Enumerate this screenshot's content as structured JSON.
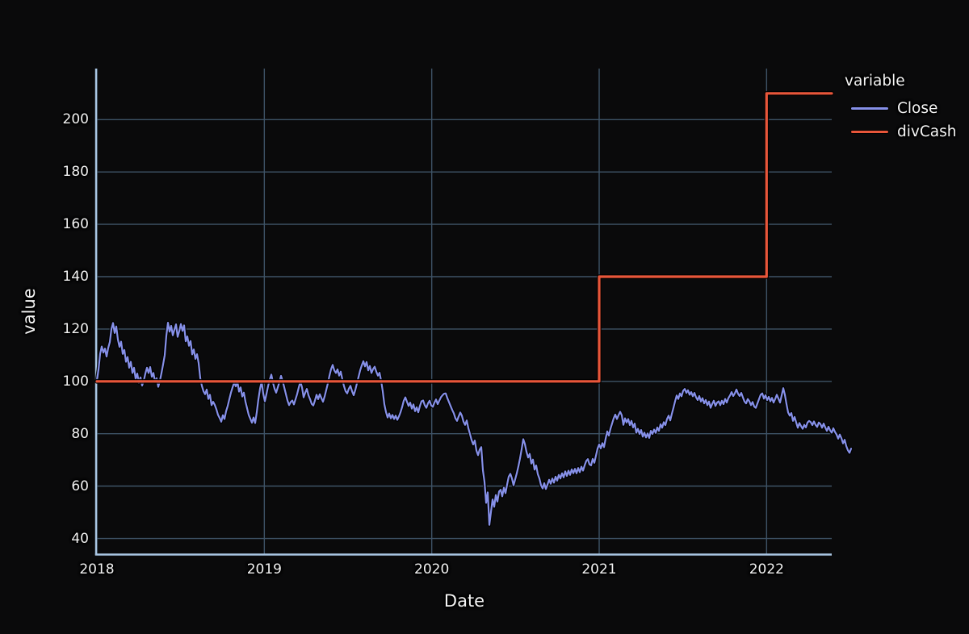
{
  "figure": {
    "kind": "dark-theme line chart"
  },
  "chart_data": {
    "type": "line",
    "title": "",
    "xlabel": "Date",
    "ylabel": "value",
    "legend": {
      "title": "variable",
      "position": "outside-right-top",
      "entries": [
        {
          "label": "Close",
          "color": "#8690e8"
        },
        {
          "label": "divCash",
          "color": "#e8563a"
        }
      ]
    },
    "x_domain": [
      2018.0,
      2022.389
    ],
    "y_domain": [
      34.0,
      219.5
    ],
    "xticks": [
      2018,
      2019,
      2020,
      2021,
      2022
    ],
    "yticks": [
      40,
      60,
      80,
      100,
      120,
      140,
      160,
      180,
      200
    ],
    "grid": true,
    "colors": {
      "background": "#0a0a0b",
      "grid": "#3e5366",
      "spine": "#a9c6e3",
      "text": "#f2f2f2"
    },
    "series": [
      {
        "name": "Close",
        "color": "#8690e8",
        "width": 2.2,
        "x_start": 2018.0,
        "x_step": 0.009646,
        "values": [
          100.3,
          104.5,
          110.5,
          113.3,
          111.0,
          112.5,
          109.5,
          112.8,
          115.0,
          120.0,
          122.3,
          118.5,
          121.0,
          116.0,
          113.2,
          115.2,
          110.5,
          112.0,
          107.5,
          109.3,
          105.2,
          107.5,
          103.2,
          105.2,
          100.9,
          103.0,
          99.4,
          101.5,
          98.4,
          100.2,
          103.0,
          105.2,
          103.2,
          105.5,
          101.8,
          103.2,
          99.8,
          101.2,
          97.9,
          100.2,
          103.2,
          106.5,
          110.0,
          117.5,
          122.4,
          119.0,
          121.2,
          117.6,
          119.8,
          121.8,
          117.0,
          119.2,
          121.9,
          119.3,
          121.4,
          115.3,
          117.2,
          113.6,
          115.4,
          110.3,
          112.2,
          108.6,
          110.4,
          107.0,
          101.2,
          98.3,
          96.2,
          95.1,
          96.9,
          93.3,
          94.9,
          90.9,
          92.2,
          91.0,
          89.3,
          87.2,
          86.0,
          84.6,
          87.1,
          85.6,
          88.6,
          90.6,
          93.2,
          95.7,
          97.7,
          99.6,
          98.1,
          99.9,
          96.1,
          97.7,
          94.2,
          95.7,
          92.2,
          89.7,
          87.2,
          85.7,
          84.2,
          86.2,
          84.1,
          88.2,
          93.2,
          97.2,
          99.9,
          95.3,
          92.4,
          95.2,
          98.2,
          100.6,
          102.6,
          99.6,
          97.2,
          95.7,
          97.7,
          99.7,
          102.1,
          100.2,
          97.7,
          95.2,
          92.7,
          90.9,
          92.1,
          92.7,
          91.2,
          93.2,
          95.2,
          97.7,
          99.9,
          97.7,
          93.9,
          95.7,
          97.1,
          94.7,
          93.2,
          91.4,
          90.8,
          92.7,
          94.9,
          93.2,
          95.1,
          93.6,
          92.2,
          94.2,
          96.7,
          99.2,
          102.2,
          104.7,
          106.3,
          104.2,
          103.2,
          104.6,
          102.2,
          103.7,
          100.7,
          98.2,
          96.2,
          95.4,
          97.2,
          98.3,
          96.2,
          94.7,
          96.7,
          99.2,
          101.7,
          104.2,
          106.1,
          107.7,
          105.7,
          107.4,
          104.2,
          105.9,
          103.2,
          104.7,
          105.6,
          103.7,
          102.2,
          103.3,
          100.2,
          96.2,
          91.2,
          88.3,
          86.2,
          87.7,
          85.9,
          87.2,
          85.6,
          86.9,
          85.3,
          86.6,
          88.2,
          90.2,
          92.6,
          93.9,
          92.2,
          90.6,
          91.9,
          89.6,
          91.2,
          88.6,
          90.1,
          88.2,
          90.6,
          92.4,
          92.7,
          90.9,
          89.9,
          91.6,
          92.6,
          90.8,
          90.3,
          91.9,
          93.1,
          91.3,
          92.6,
          93.9,
          94.7,
          95.3,
          95.4,
          93.6,
          92.1,
          90.6,
          89.1,
          87.8,
          85.9,
          84.9,
          86.6,
          88.1,
          86.9,
          84.6,
          83.4,
          85.1,
          82.1,
          79.9,
          77.6,
          75.9,
          77.4,
          73.6,
          71.8,
          73.9,
          74.9,
          66.1,
          61.6,
          53.6,
          57.6,
          45.2,
          50.1,
          54.9,
          52.1,
          56.6,
          54.1,
          57.9,
          58.6,
          56.1,
          59.4,
          57.3,
          60.6,
          63.6,
          64.7,
          62.9,
          60.3,
          62.6,
          64.9,
          67.6,
          70.6,
          74.1,
          77.9,
          76.1,
          73.1,
          70.9,
          72.3,
          68.6,
          70.1,
          66.3,
          67.9,
          64.6,
          62.9,
          60.3,
          59.1,
          61.1,
          58.9,
          60.6,
          62.4,
          60.9,
          62.9,
          61.3,
          63.6,
          62.1,
          64.3,
          62.9,
          64.9,
          63.3,
          65.6,
          63.9,
          65.9,
          64.3,
          66.4,
          64.9,
          66.6,
          64.9,
          66.9,
          65.3,
          67.4,
          65.9,
          67.9,
          69.6,
          70.3,
          68.3,
          67.9,
          70.4,
          68.9,
          71.6,
          74.3,
          75.9,
          74.4,
          76.4,
          74.9,
          78.1,
          80.9,
          79.3,
          81.9,
          83.9,
          85.9,
          87.3,
          85.6,
          87.1,
          88.4,
          87.1,
          83.4,
          85.9,
          84.3,
          85.6,
          83.3,
          84.9,
          82.4,
          83.9,
          80.4,
          81.9,
          79.9,
          81.4,
          78.9,
          80.4,
          78.6,
          80.1,
          78.4,
          81.1,
          79.9,
          81.6,
          80.3,
          82.4,
          81.1,
          83.6,
          82.3,
          84.4,
          83.3,
          85.6,
          86.9,
          85.1,
          87.6,
          89.9,
          92.4,
          94.6,
          93.3,
          95.4,
          94.3,
          96.4,
          97.1,
          95.6,
          96.6,
          94.9,
          95.9,
          94.3,
          95.6,
          93.9,
          92.9,
          94.4,
          92.3,
          93.6,
          91.6,
          92.9,
          90.9,
          92.3,
          89.9,
          91.4,
          92.6,
          90.6,
          91.9,
          92.4,
          90.9,
          92.6,
          91.3,
          93.3,
          91.9,
          93.6,
          94.6,
          95.9,
          94.4,
          95.4,
          96.9,
          95.3,
          94.4,
          95.6,
          93.9,
          92.3,
          91.6,
          93.3,
          92.4,
          90.9,
          92.1,
          90.4,
          89.9,
          91.6,
          93.3,
          94.9,
          95.4,
          93.4,
          94.7,
          92.9,
          94.1,
          92.4,
          93.7,
          91.9,
          93.3,
          94.9,
          93.4,
          91.9,
          94.6,
          97.4,
          94.9,
          91.3,
          88.1,
          86.9,
          87.9,
          84.9,
          86.4,
          84.3,
          82.3,
          84.1,
          82.9,
          81.9,
          83.4,
          82.4,
          84.3,
          84.9,
          84.4,
          83.3,
          84.7,
          83.4,
          82.6,
          84.3,
          83.7,
          82.3,
          83.9,
          82.4,
          81.1,
          82.7,
          81.3,
          80.4,
          82.1,
          80.7,
          79.7,
          78.1,
          79.7,
          78.3,
          76.3,
          77.7,
          75.3,
          73.7,
          72.7,
          74.3
        ]
      },
      {
        "name": "divCash",
        "color": "#e8563a",
        "width": 3.2,
        "points": [
          [
            2018.0,
            100
          ],
          [
            2021.0,
            100
          ],
          [
            2021.0,
            140
          ],
          [
            2022.0,
            140
          ],
          [
            2022.0,
            210
          ],
          [
            2022.389,
            210
          ]
        ]
      }
    ]
  }
}
